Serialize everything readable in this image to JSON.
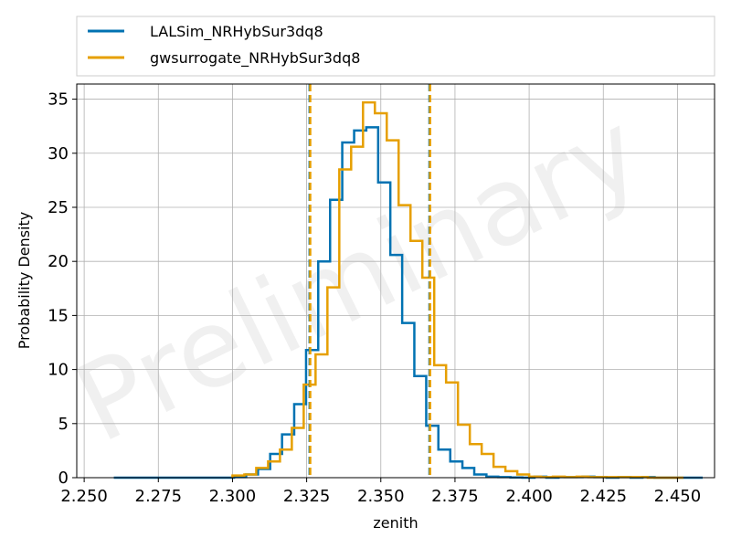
{
  "chart_data": {
    "type": "histogram",
    "xlabel": "zenith",
    "ylabel": "Probability Density",
    "xlim": [
      2.2475,
      2.4625
    ],
    "ylim": [
      0,
      36.4
    ],
    "xticks": [
      "2.250",
      "2.275",
      "2.300",
      "2.325",
      "2.350",
      "2.375",
      "2.400",
      "2.425",
      "2.450"
    ],
    "yticks": [
      "0",
      "5",
      "10",
      "15",
      "20",
      "25",
      "30",
      "35"
    ],
    "grid": true,
    "legend_position": "top (above plot)",
    "watermark": "Preliminary",
    "series": [
      {
        "name": "LALSim_NRHybSur3dq8",
        "color": "#0072b2",
        "bin_edges": [
          2.26,
          2.2641,
          2.2681,
          2.2722,
          2.2762,
          2.2803,
          2.2843,
          2.2884,
          2.2924,
          2.2965,
          2.3005,
          2.3046,
          2.3086,
          2.3127,
          2.3167,
          2.3208,
          2.3248,
          2.3289,
          2.3329,
          2.337,
          2.341,
          2.3451,
          2.3491,
          2.3532,
          2.3572,
          2.3613,
          2.3653,
          2.3694,
          2.3734,
          2.3775,
          2.3815,
          2.3856,
          2.3896,
          2.3937,
          2.3977,
          2.4018,
          2.4058,
          2.4099,
          2.4139,
          2.418,
          2.422,
          2.4261,
          2.4301,
          2.4342,
          2.4382,
          2.4423,
          2.4463,
          2.4504,
          2.4544,
          2.4585
        ],
        "values": [
          0,
          0,
          0,
          0,
          0,
          0,
          0,
          0,
          0,
          0,
          0.05,
          0.3,
          0.8,
          2.2,
          4.0,
          6.8,
          11.8,
          20.0,
          25.7,
          31.0,
          32.1,
          32.4,
          27.3,
          20.6,
          14.3,
          9.4,
          4.8,
          2.6,
          1.5,
          0.9,
          0.3,
          0.1,
          0.05,
          0.02,
          0,
          0.1,
          0,
          0.05,
          0.05,
          0.1,
          0.05,
          0,
          0.05,
          0,
          0.05,
          0,
          0,
          0,
          0
        ]
      },
      {
        "name": "gwsurrogate_NRHybSur3dq8",
        "color": "#e69f00",
        "bin_edges": [
          2.3,
          2.304,
          2.308,
          2.312,
          2.316,
          2.32,
          2.324,
          2.328,
          2.332,
          2.336,
          2.34,
          2.344,
          2.348,
          2.352,
          2.356,
          2.36,
          2.364,
          2.368,
          2.372,
          2.376,
          2.38,
          2.384,
          2.388,
          2.392,
          2.396,
          2.4,
          2.404,
          2.408,
          2.412,
          2.416,
          2.42,
          2.424,
          2.428,
          2.432,
          2.436,
          2.44,
          2.444,
          2.448,
          2.452
        ],
        "values": [
          0.2,
          0.3,
          0.9,
          1.5,
          2.6,
          4.6,
          8.6,
          11.4,
          17.6,
          28.5,
          30.6,
          34.7,
          33.7,
          31.2,
          25.2,
          21.9,
          18.5,
          10.4,
          8.8,
          4.9,
          3.1,
          2.2,
          1.0,
          0.6,
          0.3,
          0.1,
          0.05,
          0.1,
          0.05,
          0.1,
          0.05,
          0.05,
          0.05,
          0.05,
          0.05,
          0,
          0,
          0
        ]
      }
    ],
    "vlines": [
      {
        "x": 2.326,
        "color": "#0072b2",
        "style": "dashed"
      },
      {
        "x": 2.3262,
        "color": "#e69f00",
        "style": "dashed"
      },
      {
        "x": 2.3664,
        "color": "#0072b2",
        "style": "dashed"
      },
      {
        "x": 2.3666,
        "color": "#e69f00",
        "style": "dashed"
      }
    ]
  }
}
